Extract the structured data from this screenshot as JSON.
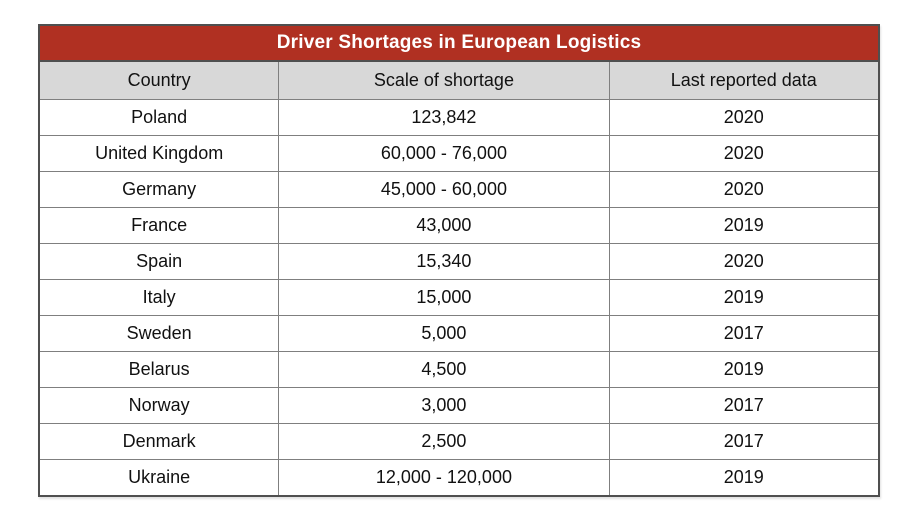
{
  "title": "Driver Shortages in European Logistics",
  "colors": {
    "banner_bg": "#b03022",
    "banner_text": "#ffffff",
    "header_bg": "#d8d8d8",
    "outer_border": "#4f4f4f",
    "inner_border": "#7f7f7f",
    "cell_text": "#111111"
  },
  "chart_data": {
    "type": "table",
    "title": "Driver Shortages in European Logistics",
    "columns": [
      "Country",
      "Scale of shortage",
      "Last reported data"
    ],
    "rows": [
      [
        "Poland",
        "123,842",
        "2020"
      ],
      [
        "United Kingdom",
        "60,000 - 76,000",
        "2020"
      ],
      [
        "Germany",
        "45,000 - 60,000",
        "2020"
      ],
      [
        "France",
        "43,000",
        "2019"
      ],
      [
        "Spain",
        "15,340",
        "2020"
      ],
      [
        "Italy",
        "15,000",
        "2019"
      ],
      [
        "Sweden",
        "5,000",
        "2017"
      ],
      [
        "Belarus",
        "4,500",
        "2019"
      ],
      [
        "Norway",
        "3,000",
        "2017"
      ],
      [
        "Denmark",
        "2,500",
        "2017"
      ],
      [
        "Ukraine",
        "12,000 - 120,000",
        "2019"
      ]
    ]
  }
}
